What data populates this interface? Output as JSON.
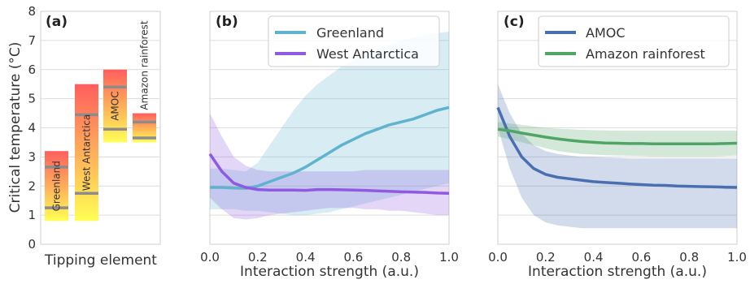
{
  "colors": {
    "greenland": "#5fb3cf",
    "west_antarctica": "#8f5ae0",
    "amoc": "#4a6fb0",
    "amazon": "#4fa564",
    "bar_top": "#ff5e5e",
    "bar_bottom": "#ffff55",
    "marker": "#8c8c8c"
  },
  "chart_data": [
    {
      "panel_label": "(a)",
      "type": "bar",
      "ylabel": "Critical temperature (°C)",
      "xlabel": "Tipping element",
      "ylim": [
        0,
        8
      ],
      "yticks": [
        "0",
        "1",
        "2",
        "3",
        "4",
        "5",
        "6",
        "7",
        "8"
      ],
      "grid": true,
      "bars": [
        {
          "name": "Greenland",
          "low": 0.8,
          "high": 3.2,
          "markers": [
            1.25,
            2.65
          ]
        },
        {
          "name": "West Antarctica",
          "low": 0.8,
          "high": 5.5,
          "markers": [
            1.75,
            4.45
          ]
        },
        {
          "name": "AMOC",
          "low": 3.5,
          "high": 6.0,
          "markers": [
            3.95,
            5.4
          ]
        },
        {
          "name": "Amazon rainforest",
          "low": 3.5,
          "high": 4.5,
          "markers": [
            3.65,
            4.2
          ]
        }
      ]
    },
    {
      "panel_label": "(b)",
      "type": "line",
      "xlabel": "Interaction strength (a.u.)",
      "xlim": [
        0,
        1
      ],
      "ylim": [
        0,
        8
      ],
      "xticks": [
        "0.0",
        "0.2",
        "0.4",
        "0.6",
        "0.8",
        "1.0"
      ],
      "legend": "top-right",
      "series": [
        {
          "name": "Greenland",
          "x": [
            0,
            0.05,
            0.1,
            0.15,
            0.2,
            0.25,
            0.3,
            0.35,
            0.4,
            0.45,
            0.5,
            0.55,
            0.6,
            0.65,
            0.7,
            0.75,
            0.8,
            0.85,
            0.9,
            0.95,
            1.0
          ],
          "y": [
            1.95,
            1.95,
            1.93,
            1.92,
            2.0,
            2.15,
            2.3,
            2.45,
            2.65,
            2.9,
            3.15,
            3.4,
            3.6,
            3.8,
            3.95,
            4.1,
            4.2,
            4.3,
            4.45,
            4.6,
            4.7
          ],
          "upper": [
            2.6,
            2.6,
            2.55,
            2.5,
            2.8,
            3.4,
            4.0,
            4.6,
            5.1,
            5.5,
            5.8,
            6.1,
            6.3,
            6.5,
            6.7,
            6.85,
            7.0,
            7.1,
            7.2,
            7.25,
            7.3
          ],
          "lower": [
            1.2,
            1.2,
            1.2,
            1.15,
            1.15,
            1.1,
            1.05,
            1.0,
            1.0,
            1.05,
            1.1,
            1.2,
            1.3,
            1.4,
            1.5,
            1.6,
            1.7,
            1.8,
            1.9,
            2.0,
            2.1
          ]
        },
        {
          "name": "West Antarctica",
          "x": [
            0,
            0.05,
            0.1,
            0.15,
            0.2,
            0.25,
            0.3,
            0.35,
            0.4,
            0.45,
            0.5,
            0.55,
            0.6,
            0.65,
            0.7,
            0.75,
            0.8,
            0.85,
            0.9,
            0.95,
            1.0
          ],
          "y": [
            3.1,
            2.5,
            2.1,
            1.95,
            1.88,
            1.86,
            1.86,
            1.86,
            1.85,
            1.88,
            1.88,
            1.87,
            1.86,
            1.85,
            1.83,
            1.82,
            1.8,
            1.79,
            1.78,
            1.76,
            1.75
          ],
          "upper": [
            4.5,
            3.7,
            3.0,
            2.7,
            2.55,
            2.5,
            2.5,
            2.5,
            2.5,
            2.5,
            2.5,
            2.5,
            2.5,
            2.55,
            2.55,
            2.55,
            2.55,
            2.55,
            2.55,
            2.55,
            2.55
          ],
          "lower": [
            1.6,
            1.2,
            0.9,
            0.85,
            0.9,
            1.0,
            1.05,
            1.1,
            1.15,
            1.2,
            1.25,
            1.25,
            1.25,
            1.2,
            1.2,
            1.15,
            1.15,
            1.1,
            1.05,
            1.0,
            1.0
          ]
        }
      ]
    },
    {
      "panel_label": "(c)",
      "type": "line",
      "xlabel": "Interaction strength (a.u.)",
      "xlim": [
        0,
        1
      ],
      "ylim": [
        0,
        8
      ],
      "xticks": [
        "0.0",
        "0.2",
        "0.4",
        "0.6",
        "0.8",
        "1.0"
      ],
      "legend": "top-right",
      "series": [
        {
          "name": "AMOC",
          "x": [
            0,
            0.05,
            0.1,
            0.15,
            0.2,
            0.25,
            0.3,
            0.35,
            0.4,
            0.45,
            0.5,
            0.55,
            0.6,
            0.65,
            0.7,
            0.75,
            0.8,
            0.85,
            0.9,
            0.95,
            1.0
          ],
          "y": [
            4.7,
            3.7,
            3.0,
            2.6,
            2.4,
            2.3,
            2.25,
            2.2,
            2.15,
            2.12,
            2.1,
            2.07,
            2.05,
            2.03,
            2.02,
            2.0,
            1.99,
            1.98,
            1.97,
            1.96,
            1.95
          ],
          "upper": [
            5.5,
            4.5,
            3.8,
            3.4,
            3.2,
            3.1,
            3.05,
            3.0,
            3.0,
            2.98,
            2.97,
            2.95,
            2.95,
            2.95,
            2.95,
            2.95,
            2.95,
            2.95,
            2.95,
            2.95,
            2.95
          ],
          "lower": [
            4.0,
            2.6,
            1.6,
            1.0,
            0.75,
            0.65,
            0.6,
            0.55,
            0.55,
            0.55,
            0.55,
            0.55,
            0.55,
            0.55,
            0.55,
            0.55,
            0.55,
            0.55,
            0.55,
            0.55,
            0.55
          ]
        },
        {
          "name": "Amazon rainforest",
          "x": [
            0,
            0.05,
            0.1,
            0.15,
            0.2,
            0.25,
            0.3,
            0.35,
            0.4,
            0.45,
            0.5,
            0.55,
            0.6,
            0.65,
            0.7,
            0.75,
            0.8,
            0.85,
            0.9,
            0.95,
            1.0
          ],
          "y": [
            3.95,
            3.9,
            3.82,
            3.75,
            3.68,
            3.62,
            3.57,
            3.53,
            3.5,
            3.48,
            3.47,
            3.46,
            3.46,
            3.45,
            3.45,
            3.45,
            3.45,
            3.45,
            3.45,
            3.46,
            3.47
          ],
          "upper": [
            4.2,
            4.15,
            4.1,
            4.05,
            4.0,
            3.97,
            3.95,
            3.93,
            3.92,
            3.91,
            3.9,
            3.9,
            3.9,
            3.9,
            3.9,
            3.9,
            3.9,
            3.9,
            3.9,
            3.9,
            3.9
          ],
          "lower": [
            3.7,
            3.6,
            3.5,
            3.4,
            3.3,
            3.2,
            3.15,
            3.1,
            3.08,
            3.06,
            3.05,
            3.04,
            3.03,
            3.02,
            3.02,
            3.02,
            3.02,
            3.02,
            3.02,
            3.03,
            3.05
          ]
        }
      ]
    }
  ]
}
